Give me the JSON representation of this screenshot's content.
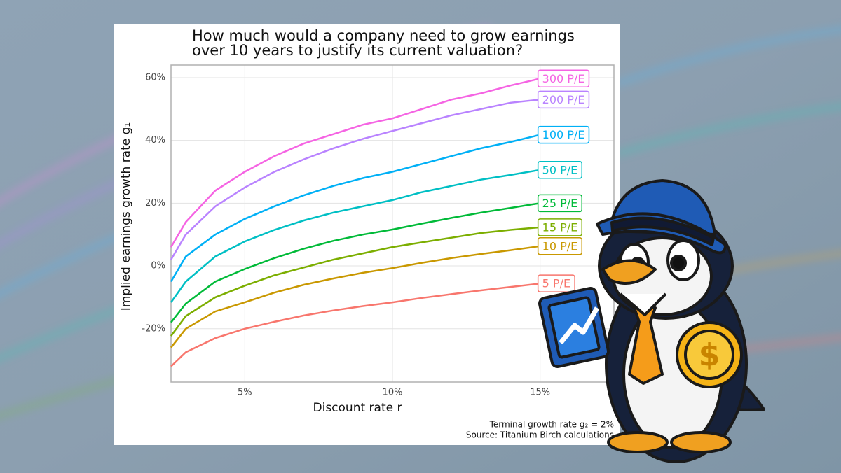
{
  "chart_data": {
    "type": "line",
    "title": [
      "How much would a company need to grow earnings",
      "over 10 years to justify its current valuation?"
    ],
    "xlabel": "Discount rate r",
    "ylabel": "Implied earnings growth rate g₁",
    "caption": [
      "Terminal growth rate g₂ = 2%",
      "Source: Titanium Birch calculations"
    ],
    "x": [
      2.5,
      3,
      4,
      5,
      6,
      7,
      8,
      9,
      10,
      11,
      12,
      13,
      14,
      15
    ],
    "series": [
      {
        "name": "300 P/E",
        "color": "#f564e3",
        "values": [
          6,
          14,
          24,
          30,
          35,
          39,
          42,
          45,
          47,
          50,
          53,
          55,
          57.5,
          59.7
        ]
      },
      {
        "name": "200 P/E",
        "color": "#b983ff",
        "values": [
          2,
          10,
          19,
          25,
          30,
          34,
          37.5,
          40.5,
          43,
          45.5,
          48,
          50,
          52,
          53
        ]
      },
      {
        "name": "100 P/E",
        "color": "#00b0f6",
        "values": [
          -5,
          3,
          10,
          15,
          19,
          22.5,
          25.5,
          28,
          30,
          32.5,
          35,
          37.5,
          39.5,
          41.8
        ]
      },
      {
        "name": "50 P/E",
        "color": "#00bfc4",
        "values": [
          -11.6,
          -5,
          3,
          7.8,
          11.5,
          14.5,
          17,
          19,
          21,
          23.5,
          25.5,
          27.5,
          29,
          30.6
        ]
      },
      {
        "name": "25 P/E",
        "color": "#00ba38",
        "values": [
          -18,
          -12,
          -5,
          -1,
          2.5,
          5.5,
          8,
          10,
          11.6,
          13.5,
          15.3,
          17,
          18.5,
          20
        ]
      },
      {
        "name": "15 P/E",
        "color": "#7cae00",
        "values": [
          -22.3,
          -16,
          -10,
          -6.3,
          -3,
          -0.5,
          2,
          4,
          6,
          7.5,
          9,
          10.5,
          11.5,
          12.3
        ]
      },
      {
        "name": "10 P/E",
        "color": "#c99800",
        "values": [
          -26,
          -20,
          -14.5,
          -11.6,
          -8.5,
          -6,
          -4,
          -2.2,
          -0.7,
          1,
          2.5,
          3.8,
          5,
          6.3
        ]
      },
      {
        "name": "5 P/E",
        "color": "#f8766d",
        "values": [
          -32,
          -27.5,
          -23,
          -20,
          -17.8,
          -15.8,
          -14.2,
          -12.8,
          -11.6,
          -10.2,
          -9,
          -7.8,
          -6.7,
          -5.6
        ]
      }
    ],
    "xlim": [
      2.5,
      17.5
    ],
    "xticks": [
      {
        "value": 5,
        "label": "5%"
      },
      {
        "value": 10,
        "label": "10%"
      },
      {
        "value": 15,
        "label": "15%"
      }
    ],
    "ylim": [
      -37,
      64
    ],
    "yticks": [
      {
        "value": -20,
        "label": "-20%"
      },
      {
        "value": 0,
        "label": "0%"
      },
      {
        "value": 20,
        "label": "20%"
      },
      {
        "value": 40,
        "label": "40%"
      },
      {
        "value": 60,
        "label": "60%"
      }
    ],
    "grid": true
  }
}
